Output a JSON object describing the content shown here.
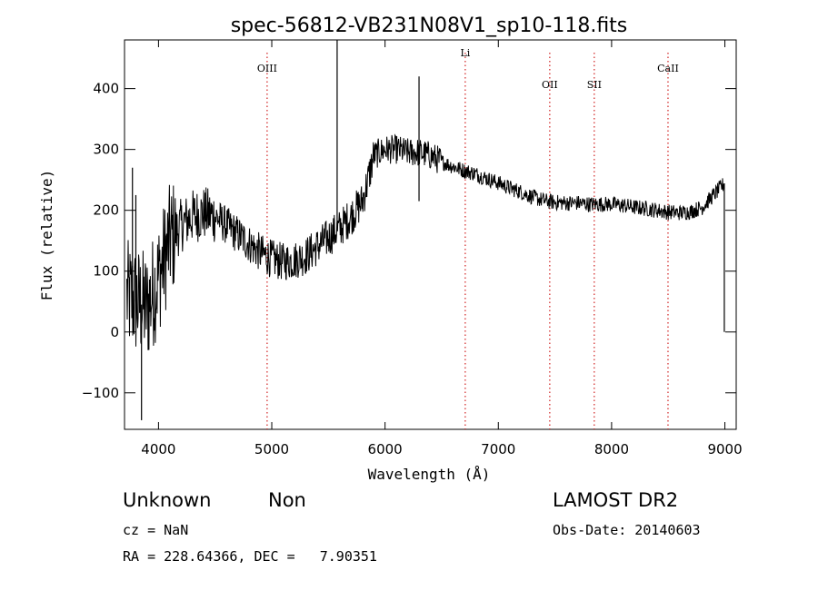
{
  "chart_data": {
    "type": "line",
    "title": "spec-56812-VB231N08V1_sp10-118.fits",
    "xlabel": "Wavelength (Å)",
    "ylabel": "Flux (relative)",
    "xlim": [
      3700,
      9100
    ],
    "ylim": [
      -160,
      480
    ],
    "xticks": [
      4000,
      5000,
      6000,
      7000,
      8000,
      9000
    ],
    "yticks": [
      -100,
      0,
      100,
      200,
      300,
      400
    ],
    "grid": false,
    "line_color": "#000000",
    "marker_color": "#d02020",
    "spectral_lines": [
      {
        "label": "OIII",
        "x": 4959
      },
      {
        "label": "Li",
        "x": 6708
      },
      {
        "label": "OII",
        "x": 7454
      },
      {
        "label": "SII",
        "x": 7847
      },
      {
        "label": "CaII",
        "x": 8498
      }
    ],
    "continuum": {
      "x": [
        3700,
        3800,
        3900,
        4000,
        4100,
        4200,
        4300,
        4400,
        4500,
        4600,
        4700,
        4800,
        4900,
        5000,
        5100,
        5200,
        5300,
        5400,
        5500,
        5600,
        5700,
        5800,
        5850,
        5900,
        6000,
        6100,
        6200,
        6300,
        6400,
        6500,
        6600,
        6700,
        6800,
        6900,
        7000,
        7100,
        7200,
        7300,
        7400,
        7500,
        7600,
        7700,
        7800,
        7900,
        8000,
        8100,
        8200,
        8300,
        8400,
        8500,
        8600,
        8700,
        8800,
        8900,
        9000
      ],
      "y": [
        60,
        50,
        40,
        90,
        150,
        175,
        190,
        195,
        190,
        175,
        160,
        145,
        130,
        120,
        115,
        118,
        125,
        140,
        155,
        170,
        190,
        215,
        250,
        290,
        300,
        300,
        295,
        295,
        290,
        280,
        272,
        265,
        260,
        252,
        245,
        237,
        230,
        222,
        216,
        213,
        212,
        212,
        210,
        210,
        210,
        208,
        205,
        203,
        200,
        197,
        196,
        198,
        205,
        225,
        245
      ]
    },
    "spikes": [
      {
        "x": 5577,
        "y": 480
      },
      {
        "x": 6300,
        "y": 420
      },
      {
        "x": 6300,
        "y": 215
      },
      {
        "x": 3770,
        "y": 270
      },
      {
        "x": 3800,
        "y": 225
      },
      {
        "x": 3850,
        "y": -145
      },
      {
        "x": 8995,
        "y": 0
      }
    ]
  },
  "footer": {
    "class_label": "Unknown",
    "subclass_label": "Non",
    "survey": "LAMOST DR2",
    "cz": "cz = NaN",
    "obs_date": "Obs-Date: 20140603",
    "coords": "RA = 228.64366, DEC =   7.90351"
  }
}
